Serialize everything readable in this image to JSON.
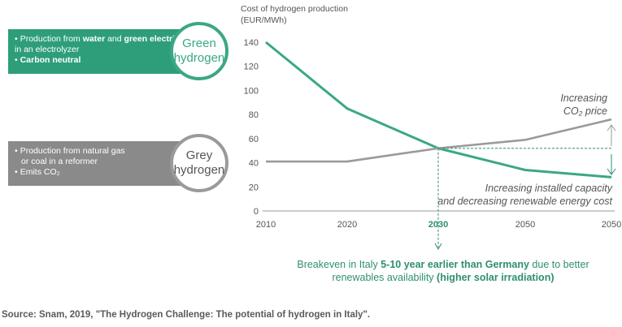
{
  "green_box": {
    "bullets": [
      {
        "pre": "Production from ",
        "b1": "water",
        "mid": " and ",
        "b2": "green electricity",
        "post": " in an electrolyzer"
      },
      {
        "bold": "Carbon neutral"
      }
    ],
    "label_line1": "Green",
    "label_line2": "hydrogen"
  },
  "grey_box": {
    "bullets": [
      "Production from natural gas",
      "or coal in a reformer",
      "Emits CO₂"
    ],
    "label_line1": "Grey",
    "label_line2": "hydrogen"
  },
  "chart_data": {
    "type": "line",
    "title": "Cost of hydrogen production",
    "title_line2": "(EUR/MWh)",
    "ylim": [
      0,
      140
    ],
    "yticks": [
      0,
      20,
      40,
      60,
      80,
      100,
      120,
      140
    ],
    "xticks": [
      "2010",
      "2020",
      "2030",
      "2050",
      "2050"
    ],
    "series": [
      {
        "color": "#3aa883",
        "x": [
          0,
          1,
          2,
          3,
          4
        ],
        "values": [
          140,
          85,
          52,
          34,
          28
        ]
      },
      {
        "color": "#9a9a9a",
        "x": [
          0,
          1,
          2,
          3,
          4
        ],
        "values": [
          41,
          41,
          52,
          59,
          76
        ]
      }
    ],
    "annotations": {
      "co2_line1": "Increasing",
      "co2_line2": "CO₂ price",
      "renew_line1": "Increasing installed capacity",
      "renew_line2": "and decreasing renewable energy cost"
    }
  },
  "breakeven": {
    "pre": "Breakeven in Italy ",
    "bold1": "5-10 year earlier than Germany",
    "mid": " due to better renewables availability ",
    "bold2": "(higher solar irradiation)"
  },
  "source": "Source: Snam, 2019, \"The Hydrogen Challenge: The potential of hydrogen in Italy\"."
}
